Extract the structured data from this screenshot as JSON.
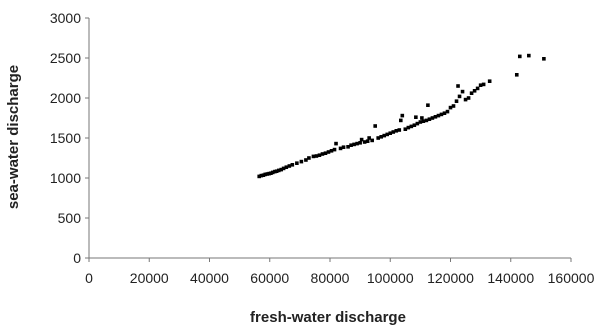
{
  "chart_data": {
    "type": "scatter",
    "title": "",
    "xlabel": "fresh-water discharge",
    "ylabel": "sea-water discharge",
    "xlim": [
      0,
      160000
    ],
    "ylim": [
      0,
      3000
    ],
    "xticks": [
      "0",
      "20000",
      "40000",
      "60000",
      "80000",
      "100000",
      "120000",
      "140000",
      "160000"
    ],
    "yticks": [
      "0",
      "500",
      "1000",
      "1500",
      "2000",
      "2500",
      "3000"
    ],
    "grid": false,
    "legend": "none",
    "marker_color": "#000000",
    "series": [
      {
        "points": [
          [
            56500,
            1020
          ],
          [
            57200,
            1030
          ],
          [
            57900,
            1035
          ],
          [
            58500,
            1045
          ],
          [
            59200,
            1050
          ],
          [
            59800,
            1055
          ],
          [
            60400,
            1060
          ],
          [
            61000,
            1070
          ],
          [
            61700,
            1080
          ],
          [
            62300,
            1085
          ],
          [
            63000,
            1095
          ],
          [
            63800,
            1105
          ],
          [
            64600,
            1120
          ],
          [
            65500,
            1135
          ],
          [
            66500,
            1150
          ],
          [
            67500,
            1165
          ],
          [
            69000,
            1185
          ],
          [
            70500,
            1205
          ],
          [
            72000,
            1225
          ],
          [
            73000,
            1250
          ],
          [
            74500,
            1270
          ],
          [
            75500,
            1275
          ],
          [
            76500,
            1285
          ],
          [
            77500,
            1300
          ],
          [
            78500,
            1310
          ],
          [
            79500,
            1325
          ],
          [
            80500,
            1340
          ],
          [
            81500,
            1355
          ],
          [
            82000,
            1430
          ],
          [
            83500,
            1370
          ],
          [
            84500,
            1385
          ],
          [
            86000,
            1390
          ],
          [
            87000,
            1410
          ],
          [
            88000,
            1420
          ],
          [
            89000,
            1430
          ],
          [
            90000,
            1440
          ],
          [
            90500,
            1480
          ],
          [
            91500,
            1450
          ],
          [
            92500,
            1460
          ],
          [
            93000,
            1500
          ],
          [
            94000,
            1470
          ],
          [
            95000,
            1650
          ],
          [
            96000,
            1500
          ],
          [
            97000,
            1515
          ],
          [
            98000,
            1530
          ],
          [
            99000,
            1545
          ],
          [
            100000,
            1560
          ],
          [
            101000,
            1575
          ],
          [
            102000,
            1590
          ],
          [
            103000,
            1600
          ],
          [
            103500,
            1720
          ],
          [
            104000,
            1780
          ],
          [
            105000,
            1610
          ],
          [
            106000,
            1630
          ],
          [
            107000,
            1645
          ],
          [
            108000,
            1660
          ],
          [
            108500,
            1760
          ],
          [
            109000,
            1680
          ],
          [
            110000,
            1700
          ],
          [
            110500,
            1750
          ],
          [
            111000,
            1710
          ],
          [
            112000,
            1720
          ],
          [
            112500,
            1910
          ],
          [
            113000,
            1735
          ],
          [
            114000,
            1750
          ],
          [
            115000,
            1765
          ],
          [
            116000,
            1780
          ],
          [
            117000,
            1795
          ],
          [
            118000,
            1810
          ],
          [
            119000,
            1830
          ],
          [
            120000,
            1880
          ],
          [
            121000,
            1900
          ],
          [
            122000,
            1960
          ],
          [
            122500,
            2150
          ],
          [
            123000,
            2020
          ],
          [
            124000,
            2080
          ],
          [
            125000,
            1980
          ],
          [
            126000,
            2000
          ],
          [
            127000,
            2060
          ],
          [
            128000,
            2090
          ],
          [
            129000,
            2120
          ],
          [
            130000,
            2160
          ],
          [
            131000,
            2170
          ],
          [
            133000,
            2210
          ],
          [
            142000,
            2290
          ],
          [
            143000,
            2520
          ],
          [
            146000,
            2530
          ],
          [
            151000,
            2490
          ]
        ]
      }
    ]
  }
}
